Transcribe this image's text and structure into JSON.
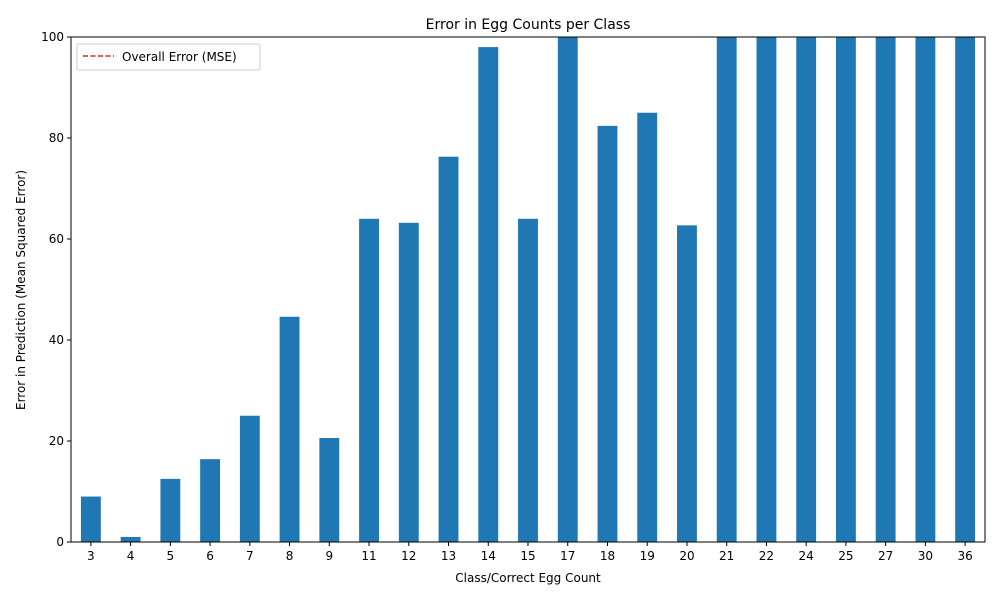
{
  "chart_data": {
    "type": "bar",
    "title": "Error in Egg Counts per Class",
    "xlabel": "Class/Correct Egg Count",
    "ylabel": "Error in Prediction (Mean Squared Error)",
    "categories": [
      "3",
      "4",
      "5",
      "6",
      "7",
      "8",
      "9",
      "11",
      "12",
      "13",
      "14",
      "15",
      "17",
      "18",
      "19",
      "20",
      "21",
      "22",
      "24",
      "25",
      "27",
      "30",
      "36"
    ],
    "values": [
      9.0,
      1.0,
      12.5,
      16.4,
      25.0,
      44.6,
      20.6,
      64.0,
      63.2,
      76.3,
      98.0,
      64.0,
      100,
      82.4,
      85.0,
      62.7,
      100,
      100,
      100,
      100,
      100,
      100,
      100
    ],
    "ylim": [
      0,
      100
    ],
    "yticks": [
      0,
      20,
      40,
      60,
      80,
      100
    ],
    "grid": false,
    "bar_color": "#1f77b4",
    "legend": {
      "placement": "top-left",
      "entries": [
        {
          "label": "Overall Error (MSE)",
          "style": "dashed-line",
          "color": "#d62728"
        }
      ]
    }
  }
}
